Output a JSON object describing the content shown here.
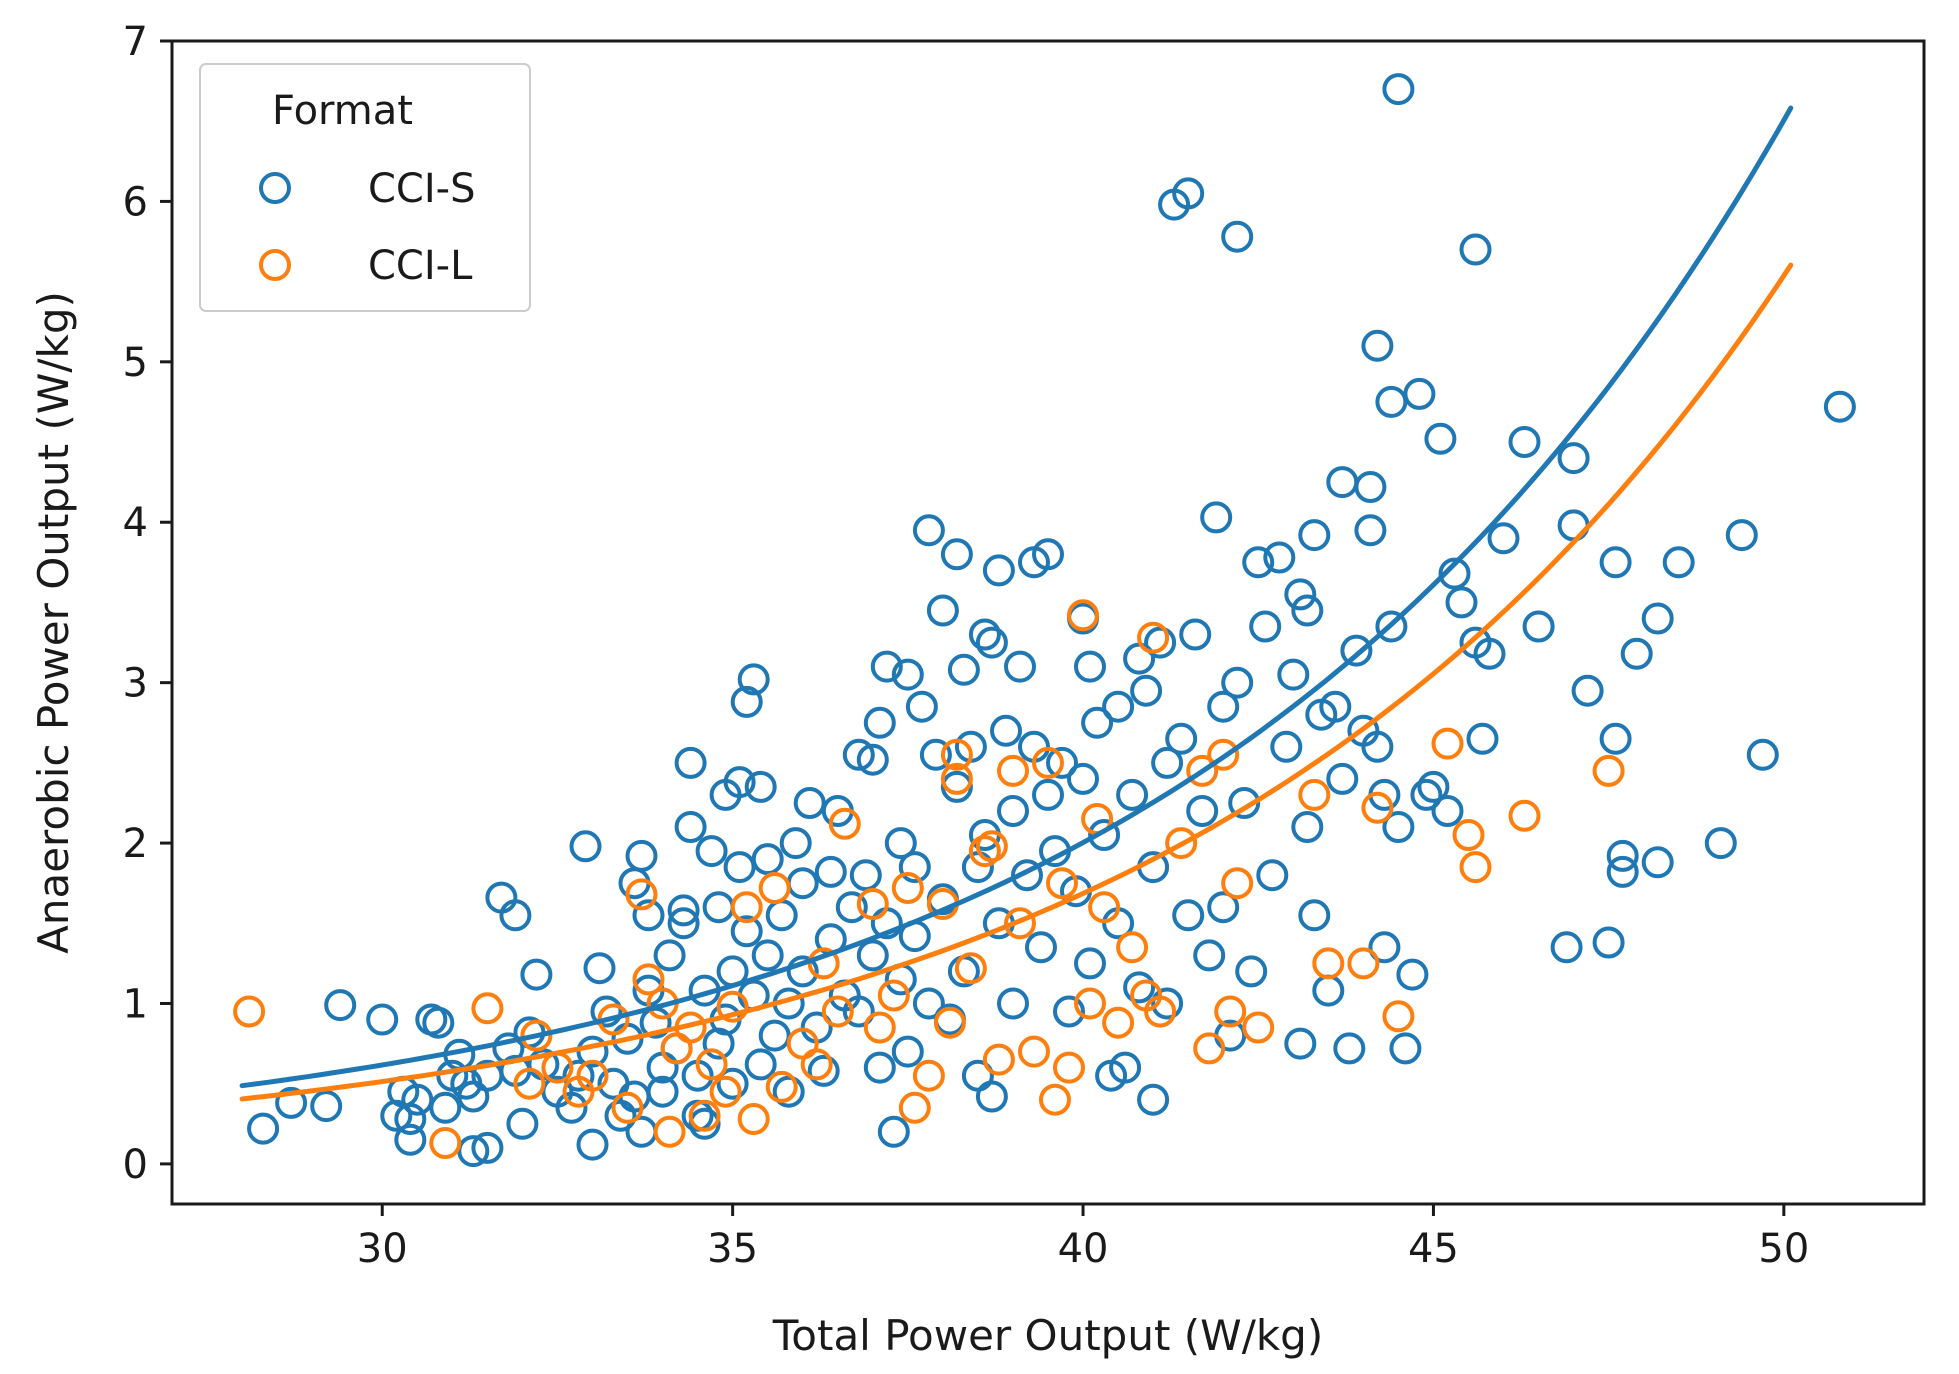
{
  "chart_data": {
    "type": "scatter",
    "title": "",
    "xlabel": "Total Power Output (W/kg)",
    "ylabel": "Anaerobic Power Output (W/kg)",
    "xlim": [
      27,
      52
    ],
    "ylim": [
      -0.25,
      7.0
    ],
    "xticks": [
      30,
      35,
      40,
      45,
      50
    ],
    "yticks": [
      0,
      1,
      2,
      3,
      4,
      5,
      6,
      7
    ],
    "grid": false,
    "legend": {
      "title": "Format",
      "placement": "top-left",
      "entries": [
        {
          "label": "CCI-S",
          "color": "#1f77b4"
        },
        {
          "label": "CCI-L",
          "color": "#ff7f0e"
        }
      ]
    },
    "series": [
      {
        "name": "CCI-S",
        "color": "#1f77b4",
        "marker": "open-circle",
        "points": [
          [
            28.3,
            0.22
          ],
          [
            28.7,
            0.38
          ],
          [
            29.2,
            0.36
          ],
          [
            29.4,
            0.99
          ],
          [
            30.0,
            0.9
          ],
          [
            30.2,
            0.3
          ],
          [
            30.3,
            0.45
          ],
          [
            30.4,
            0.28
          ],
          [
            30.4,
            0.15
          ],
          [
            30.5,
            0.4
          ],
          [
            30.7,
            0.9
          ],
          [
            30.8,
            0.88
          ],
          [
            30.9,
            0.35
          ],
          [
            31.0,
            0.55
          ],
          [
            31.1,
            0.68
          ],
          [
            31.2,
            0.5
          ],
          [
            31.3,
            0.42
          ],
          [
            31.3,
            0.08
          ],
          [
            31.5,
            0.1
          ],
          [
            31.5,
            0.55
          ],
          [
            31.7,
            1.66
          ],
          [
            31.8,
            0.72
          ],
          [
            31.9,
            1.55
          ],
          [
            31.9,
            0.58
          ],
          [
            32.0,
            0.25
          ],
          [
            32.1,
            0.82
          ],
          [
            32.2,
            1.18
          ],
          [
            32.3,
            0.62
          ],
          [
            32.5,
            0.45
          ],
          [
            32.7,
            0.35
          ],
          [
            32.8,
            0.55
          ],
          [
            32.9,
            1.98
          ],
          [
            33.0,
            0.12
          ],
          [
            33.0,
            0.7
          ],
          [
            33.1,
            1.22
          ],
          [
            33.2,
            0.95
          ],
          [
            33.3,
            0.5
          ],
          [
            33.4,
            0.3
          ],
          [
            33.5,
            0.78
          ],
          [
            33.6,
            1.75
          ],
          [
            33.6,
            0.42
          ],
          [
            33.7,
            1.92
          ],
          [
            33.7,
            0.2
          ],
          [
            33.8,
            1.55
          ],
          [
            33.8,
            1.08
          ],
          [
            33.9,
            0.88
          ],
          [
            34.0,
            0.6
          ],
          [
            34.0,
            0.45
          ],
          [
            34.1,
            1.3
          ],
          [
            34.2,
            0.72
          ],
          [
            34.3,
            1.58
          ],
          [
            34.3,
            1.5
          ],
          [
            34.4,
            2.1
          ],
          [
            34.4,
            2.5
          ],
          [
            34.5,
            0.3
          ],
          [
            34.5,
            0.55
          ],
          [
            34.6,
            1.08
          ],
          [
            34.6,
            0.25
          ],
          [
            34.7,
            1.95
          ],
          [
            34.8,
            0.75
          ],
          [
            34.8,
            1.6
          ],
          [
            34.9,
            2.3
          ],
          [
            34.9,
            0.9
          ],
          [
            35.0,
            1.2
          ],
          [
            35.0,
            0.5
          ],
          [
            35.1,
            2.38
          ],
          [
            35.1,
            1.85
          ],
          [
            35.2,
            1.45
          ],
          [
            35.2,
            2.88
          ],
          [
            35.3,
            3.02
          ],
          [
            35.3,
            1.05
          ],
          [
            35.4,
            2.35
          ],
          [
            35.4,
            0.62
          ],
          [
            35.5,
            1.9
          ],
          [
            35.5,
            1.3
          ],
          [
            35.6,
            0.8
          ],
          [
            35.7,
            1.55
          ],
          [
            35.8,
            1.0
          ],
          [
            35.8,
            0.45
          ],
          [
            35.9,
            2.0
          ],
          [
            36.0,
            1.75
          ],
          [
            36.0,
            1.2
          ],
          [
            36.1,
            2.25
          ],
          [
            36.2,
            0.85
          ],
          [
            36.3,
            0.58
          ],
          [
            36.4,
            1.82
          ],
          [
            36.4,
            1.4
          ],
          [
            36.5,
            2.2
          ],
          [
            36.6,
            1.05
          ],
          [
            36.7,
            1.6
          ],
          [
            36.8,
            2.55
          ],
          [
            36.8,
            0.95
          ],
          [
            36.9,
            1.8
          ],
          [
            37.0,
            2.52
          ],
          [
            37.0,
            1.3
          ],
          [
            37.1,
            2.75
          ],
          [
            37.1,
            0.6
          ],
          [
            37.2,
            3.1
          ],
          [
            37.2,
            1.5
          ],
          [
            37.3,
            0.2
          ],
          [
            37.4,
            2.0
          ],
          [
            37.4,
            1.15
          ],
          [
            37.5,
            3.05
          ],
          [
            37.5,
            0.7
          ],
          [
            37.6,
            1.85
          ],
          [
            37.6,
            1.42
          ],
          [
            37.7,
            2.85
          ],
          [
            37.8,
            3.95
          ],
          [
            37.8,
            1.0
          ],
          [
            37.9,
            2.55
          ],
          [
            38.0,
            3.45
          ],
          [
            38.0,
            1.65
          ],
          [
            38.1,
            0.9
          ],
          [
            38.2,
            3.8
          ],
          [
            38.2,
            2.35
          ],
          [
            38.3,
            1.2
          ],
          [
            38.3,
            3.08
          ],
          [
            38.4,
            2.6
          ],
          [
            38.5,
            1.85
          ],
          [
            38.5,
            0.55
          ],
          [
            38.6,
            3.3
          ],
          [
            38.6,
            2.05
          ],
          [
            38.7,
            3.25
          ],
          [
            38.7,
            0.42
          ],
          [
            38.8,
            3.7
          ],
          [
            38.8,
            1.5
          ],
          [
            38.9,
            2.7
          ],
          [
            39.0,
            2.2
          ],
          [
            39.0,
            1.0
          ],
          [
            39.1,
            3.1
          ],
          [
            39.2,
            1.8
          ],
          [
            39.3,
            3.75
          ],
          [
            39.3,
            2.6
          ],
          [
            39.4,
            1.35
          ],
          [
            39.5,
            3.8
          ],
          [
            39.5,
            2.3
          ],
          [
            39.6,
            1.95
          ],
          [
            39.7,
            2.5
          ],
          [
            39.8,
            0.95
          ],
          [
            39.9,
            1.7
          ],
          [
            40.0,
            3.4
          ],
          [
            40.0,
            2.4
          ],
          [
            40.1,
            3.1
          ],
          [
            40.1,
            1.25
          ],
          [
            40.2,
            2.75
          ],
          [
            40.3,
            2.05
          ],
          [
            40.4,
            0.55
          ],
          [
            40.5,
            2.85
          ],
          [
            40.5,
            1.5
          ],
          [
            40.6,
            0.6
          ],
          [
            40.7,
            2.3
          ],
          [
            40.8,
            3.15
          ],
          [
            40.8,
            1.1
          ],
          [
            40.9,
            2.95
          ],
          [
            41.0,
            0.4
          ],
          [
            41.0,
            1.85
          ],
          [
            41.1,
            3.25
          ],
          [
            41.2,
            2.5
          ],
          [
            41.2,
            1.0
          ],
          [
            41.3,
            5.98
          ],
          [
            41.4,
            2.65
          ],
          [
            41.5,
            6.05
          ],
          [
            41.5,
            1.55
          ],
          [
            41.6,
            3.3
          ],
          [
            41.7,
            2.2
          ],
          [
            41.8,
            1.3
          ],
          [
            41.9,
            4.03
          ],
          [
            42.0,
            2.85
          ],
          [
            42.0,
            1.6
          ],
          [
            42.1,
            0.8
          ],
          [
            42.2,
            5.78
          ],
          [
            42.2,
            3.0
          ],
          [
            42.3,
            2.25
          ],
          [
            42.4,
            1.2
          ],
          [
            42.5,
            3.75
          ],
          [
            42.6,
            3.35
          ],
          [
            42.7,
            1.8
          ],
          [
            42.8,
            3.78
          ],
          [
            42.9,
            2.6
          ],
          [
            43.0,
            3.05
          ],
          [
            43.1,
            3.55
          ],
          [
            43.1,
            0.75
          ],
          [
            43.2,
            3.45
          ],
          [
            43.2,
            2.1
          ],
          [
            43.3,
            3.92
          ],
          [
            43.3,
            1.55
          ],
          [
            43.4,
            2.8
          ],
          [
            43.5,
            1.08
          ],
          [
            43.6,
            2.85
          ],
          [
            43.7,
            4.25
          ],
          [
            43.7,
            2.4
          ],
          [
            43.8,
            0.72
          ],
          [
            43.9,
            3.2
          ],
          [
            44.0,
            2.7
          ],
          [
            44.1,
            4.22
          ],
          [
            44.1,
            3.95
          ],
          [
            44.2,
            5.1
          ],
          [
            44.2,
            2.6
          ],
          [
            44.3,
            2.3
          ],
          [
            44.3,
            1.35
          ],
          [
            44.4,
            4.75
          ],
          [
            44.4,
            3.35
          ],
          [
            44.5,
            6.7
          ],
          [
            44.5,
            2.1
          ],
          [
            44.6,
            0.72
          ],
          [
            44.7,
            1.18
          ],
          [
            44.8,
            4.8
          ],
          [
            44.9,
            2.3
          ],
          [
            45.0,
            2.35
          ],
          [
            45.1,
            4.52
          ],
          [
            45.2,
            2.2
          ],
          [
            45.3,
            3.68
          ],
          [
            45.4,
            3.5
          ],
          [
            45.6,
            5.7
          ],
          [
            45.6,
            3.25
          ],
          [
            45.7,
            2.65
          ],
          [
            45.8,
            3.18
          ],
          [
            46.0,
            3.9
          ],
          [
            46.3,
            4.5
          ],
          [
            46.5,
            3.35
          ],
          [
            46.9,
            1.35
          ],
          [
            47.0,
            4.4
          ],
          [
            47.0,
            3.98
          ],
          [
            47.2,
            2.95
          ],
          [
            47.5,
            1.38
          ],
          [
            47.6,
            3.75
          ],
          [
            47.6,
            2.65
          ],
          [
            47.7,
            1.82
          ],
          [
            47.7,
            1.92
          ],
          [
            47.9,
            3.18
          ],
          [
            48.2,
            3.4
          ],
          [
            48.2,
            1.88
          ],
          [
            48.5,
            3.75
          ],
          [
            49.1,
            2.0
          ],
          [
            49.4,
            3.92
          ],
          [
            49.7,
            2.55
          ],
          [
            50.8,
            4.72
          ]
        ],
        "fit_curve": {
          "model": "exponential",
          "x": [
            28.0,
            50.1
          ],
          "a": 0.018,
          "b": 0.1178
        }
      },
      {
        "name": "CCI-L",
        "color": "#ff7f0e",
        "marker": "open-circle",
        "points": [
          [
            28.1,
            0.95
          ],
          [
            30.9,
            0.13
          ],
          [
            31.5,
            0.97
          ],
          [
            32.1,
            0.5
          ],
          [
            32.2,
            0.8
          ],
          [
            32.5,
            0.6
          ],
          [
            32.8,
            0.45
          ],
          [
            33.0,
            0.55
          ],
          [
            33.3,
            0.9
          ],
          [
            33.5,
            0.35
          ],
          [
            33.7,
            1.68
          ],
          [
            33.8,
            1.15
          ],
          [
            34.0,
            1.0
          ],
          [
            34.1,
            0.2
          ],
          [
            34.2,
            0.72
          ],
          [
            34.4,
            0.85
          ],
          [
            34.6,
            0.3
          ],
          [
            34.7,
            0.62
          ],
          [
            34.9,
            0.45
          ],
          [
            35.0,
            0.98
          ],
          [
            35.2,
            1.6
          ],
          [
            35.3,
            0.28
          ],
          [
            35.6,
            1.72
          ],
          [
            35.7,
            0.48
          ],
          [
            36.0,
            0.75
          ],
          [
            36.2,
            0.62
          ],
          [
            36.3,
            1.25
          ],
          [
            36.5,
            0.95
          ],
          [
            36.6,
            2.12
          ],
          [
            37.0,
            1.62
          ],
          [
            37.1,
            0.85
          ],
          [
            37.3,
            1.05
          ],
          [
            37.5,
            1.72
          ],
          [
            37.6,
            0.35
          ],
          [
            37.8,
            0.55
          ],
          [
            38.0,
            1.62
          ],
          [
            38.1,
            0.88
          ],
          [
            38.2,
            2.55
          ],
          [
            38.2,
            2.4
          ],
          [
            38.4,
            1.22
          ],
          [
            38.6,
            1.95
          ],
          [
            38.7,
            1.98
          ],
          [
            38.8,
            0.65
          ],
          [
            39.0,
            2.45
          ],
          [
            39.1,
            1.5
          ],
          [
            39.3,
            0.7
          ],
          [
            39.5,
            2.5
          ],
          [
            39.6,
            0.4
          ],
          [
            39.7,
            1.75
          ],
          [
            39.8,
            0.6
          ],
          [
            40.0,
            3.42
          ],
          [
            40.1,
            1.0
          ],
          [
            40.2,
            2.15
          ],
          [
            40.3,
            1.6
          ],
          [
            40.5,
            0.88
          ],
          [
            40.7,
            1.35
          ],
          [
            40.9,
            1.05
          ],
          [
            41.0,
            3.28
          ],
          [
            41.1,
            0.95
          ],
          [
            41.4,
            2.0
          ],
          [
            41.7,
            2.45
          ],
          [
            41.8,
            0.72
          ],
          [
            42.0,
            2.55
          ],
          [
            42.1,
            0.95
          ],
          [
            42.2,
            1.75
          ],
          [
            42.5,
            0.85
          ],
          [
            43.3,
            2.3
          ],
          [
            43.5,
            1.25
          ],
          [
            44.0,
            1.25
          ],
          [
            44.2,
            2.22
          ],
          [
            44.5,
            0.92
          ],
          [
            45.2,
            2.62
          ],
          [
            45.5,
            2.05
          ],
          [
            45.6,
            1.85
          ],
          [
            46.3,
            2.17
          ],
          [
            47.5,
            2.45
          ]
        ],
        "fit_curve": {
          "model": "exponential",
          "x": [
            28.0,
            50.1
          ],
          "a": 0.0145,
          "b": 0.1189
        }
      }
    ]
  }
}
